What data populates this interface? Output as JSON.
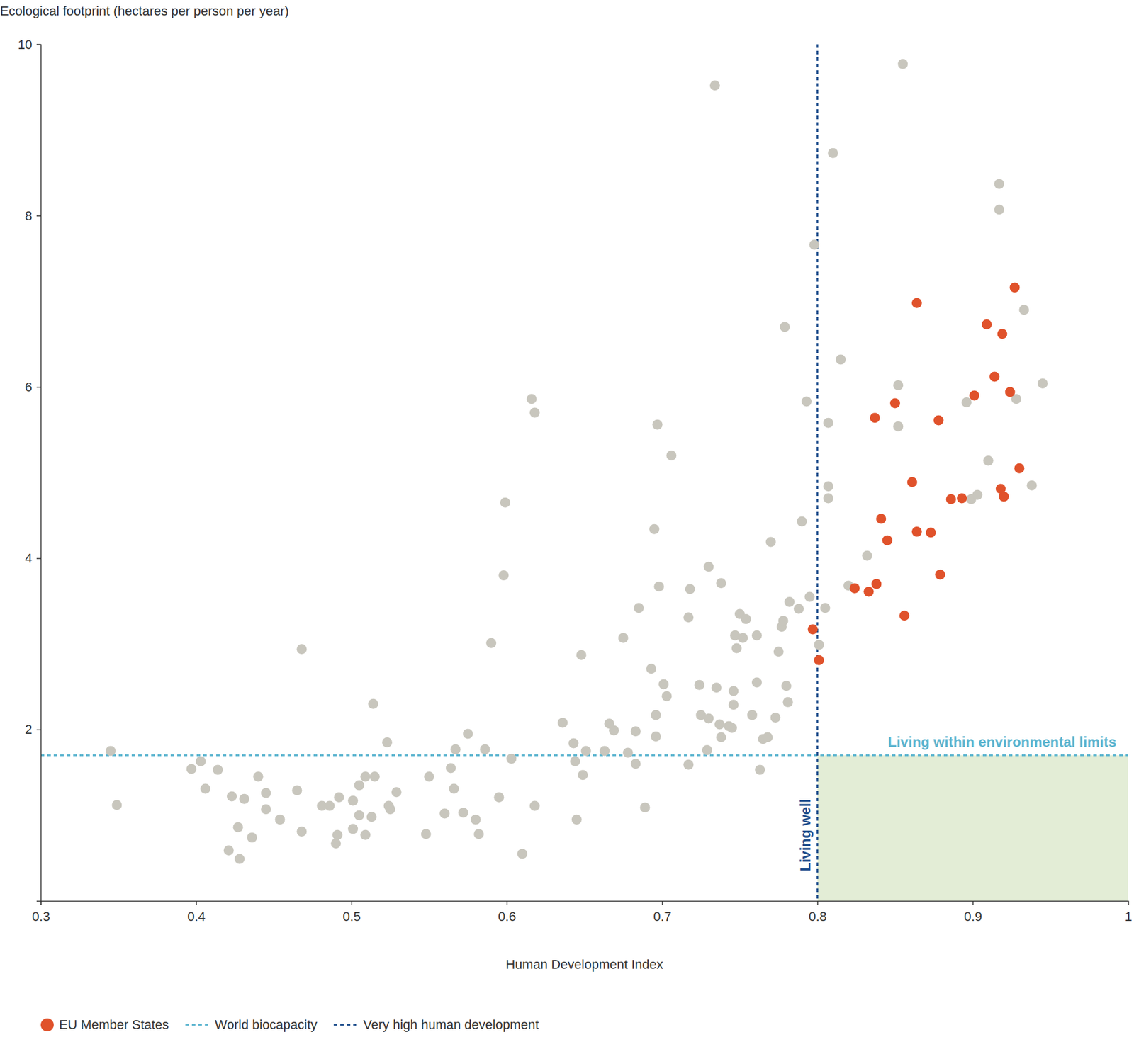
{
  "chart_data": {
    "type": "scatter",
    "y_label": "Ecological footprint (hectares per person per year)",
    "x_label": "Human Development Index",
    "xlim": [
      0.3,
      1
    ],
    "xticks": [
      0.3,
      0.4,
      0.5,
      0.6,
      0.7,
      0.8,
      0.9,
      1
    ],
    "ylim": [
      0,
      10
    ],
    "yticks": [
      2,
      4,
      6,
      8,
      10
    ],
    "grid": false,
    "legend": "bottom",
    "series": [
      {
        "color": "#c8c6bd",
        "marker": "circle",
        "x": [
          0.345,
          0.349,
          0.397,
          0.403,
          0.406,
          0.414,
          0.421,
          0.423,
          0.427,
          0.428,
          0.431,
          0.436,
          0.44,
          0.445,
          0.445,
          0.454,
          0.465,
          0.468,
          0.468,
          0.481,
          0.486,
          0.49,
          0.491,
          0.492,
          0.501,
          0.501,
          0.505,
          0.505,
          0.509,
          0.509,
          0.513,
          0.515,
          0.514,
          0.524,
          0.525,
          0.523,
          0.529,
          0.548,
          0.55,
          0.56,
          0.564,
          0.566,
          0.567,
          0.572,
          0.575,
          0.58,
          0.582,
          0.586,
          0.59,
          0.595,
          0.598,
          0.599,
          0.603,
          0.61,
          0.616,
          0.618,
          0.618,
          0.636,
          0.643,
          0.644,
          0.645,
          0.648,
          0.649,
          0.651,
          0.663,
          0.666,
          0.669,
          0.675,
          0.678,
          0.683,
          0.683,
          0.685,
          0.689,
          0.693,
          0.695,
          0.696,
          0.696,
          0.697,
          0.698,
          0.701,
          0.703,
          0.706,
          0.717,
          0.717,
          0.718,
          0.724,
          0.725,
          0.729,
          0.73,
          0.73,
          0.734,
          0.735,
          0.737,
          0.738,
          0.738,
          0.743,
          0.745,
          0.746,
          0.746,
          0.747,
          0.748,
          0.75,
          0.752,
          0.754,
          0.758,
          0.761,
          0.761,
          0.763,
          0.765,
          0.768,
          0.77,
          0.773,
          0.775,
          0.777,
          0.778,
          0.779,
          0.78,
          0.781,
          0.782,
          0.788,
          0.79,
          0.793,
          0.795,
          0.798,
          0.801,
          0.805,
          0.807,
          0.807,
          0.807,
          0.81,
          0.815,
          0.82,
          0.832,
          0.852,
          0.852,
          0.855,
          0.896,
          0.899,
          0.903,
          0.91,
          0.917,
          0.917,
          0.928,
          0.933,
          0.938,
          0.945
        ],
        "values": [
          1.75,
          1.12,
          1.54,
          1.63,
          1.31,
          1.53,
          0.59,
          1.22,
          0.86,
          0.49,
          1.19,
          0.74,
          1.45,
          1.26,
          1.07,
          0.95,
          1.29,
          2.94,
          0.81,
          1.11,
          1.11,
          0.67,
          0.77,
          1.21,
          1.17,
          0.84,
          1.0,
          1.35,
          0.77,
          1.45,
          0.98,
          1.45,
          2.3,
          1.11,
          1.07,
          1.85,
          1.27,
          0.78,
          1.45,
          1.02,
          1.55,
          1.31,
          1.77,
          1.03,
          1.95,
          0.95,
          0.78,
          1.77,
          3.01,
          1.21,
          3.8,
          4.65,
          1.66,
          0.55,
          5.86,
          5.7,
          1.11,
          2.08,
          1.84,
          1.63,
          0.95,
          2.87,
          1.47,
          1.75,
          1.75,
          2.07,
          1.99,
          3.07,
          1.73,
          1.98,
          1.6,
          3.42,
          1.09,
          2.71,
          4.34,
          2.17,
          1.92,
          5.56,
          3.67,
          2.53,
          2.39,
          5.2,
          1.59,
          3.31,
          3.64,
          2.52,
          2.17,
          1.76,
          2.13,
          3.9,
          9.52,
          2.49,
          2.06,
          3.71,
          1.91,
          2.04,
          2.02,
          2.29,
          2.45,
          3.1,
          2.95,
          3.35,
          3.07,
          3.29,
          2.17,
          3.1,
          2.55,
          1.53,
          1.89,
          1.91,
          4.19,
          2.14,
          2.91,
          3.2,
          3.27,
          6.7,
          2.51,
          2.32,
          3.49,
          3.41,
          4.43,
          5.83,
          3.55,
          7.66,
          2.99,
          3.42,
          5.58,
          4.84,
          4.7,
          8.73,
          6.32,
          3.68,
          4.03,
          6.02,
          5.54,
          9.77,
          5.82,
          4.69,
          4.74,
          5.14,
          8.37,
          8.07,
          5.86,
          6.9,
          4.85,
          6.04
        ]
      },
      {
        "name": "EU Member States",
        "color": "#e0522b",
        "marker": "circle",
        "x": [
          0.797,
          0.801,
          0.824,
          0.833,
          0.837,
          0.838,
          0.841,
          0.845,
          0.85,
          0.856,
          0.861,
          0.864,
          0.864,
          0.873,
          0.878,
          0.879,
          0.886,
          0.893,
          0.901,
          0.909,
          0.914,
          0.918,
          0.919,
          0.92,
          0.924,
          0.927,
          0.93
        ],
        "values": [
          3.17,
          2.81,
          3.65,
          3.61,
          5.64,
          3.7,
          4.46,
          4.21,
          5.81,
          3.33,
          4.89,
          6.98,
          4.31,
          4.3,
          5.61,
          3.81,
          4.69,
          4.7,
          5.9,
          6.73,
          6.12,
          4.81,
          6.62,
          4.72,
          5.94,
          7.16,
          5.05
        ]
      }
    ],
    "reference_lines": [
      {
        "name": "World biocapacity",
        "axis": "y",
        "value": 1.7,
        "color": "#5ab4cf",
        "line_style": "dashed"
      },
      {
        "name": "Very high human development",
        "axis": "x",
        "value": 0.8,
        "color": "#1f4e8c",
        "line_style": "dashed"
      }
    ],
    "region": {
      "x": [
        0.8,
        1
      ],
      "y": [
        0,
        1.7
      ],
      "color": "#e3edd6"
    },
    "annotations": [
      {
        "text": "Living within environmental limits",
        "color": "#5ab4cf"
      },
      {
        "text": "Living well",
        "color": "#1f4e8c"
      }
    ]
  }
}
